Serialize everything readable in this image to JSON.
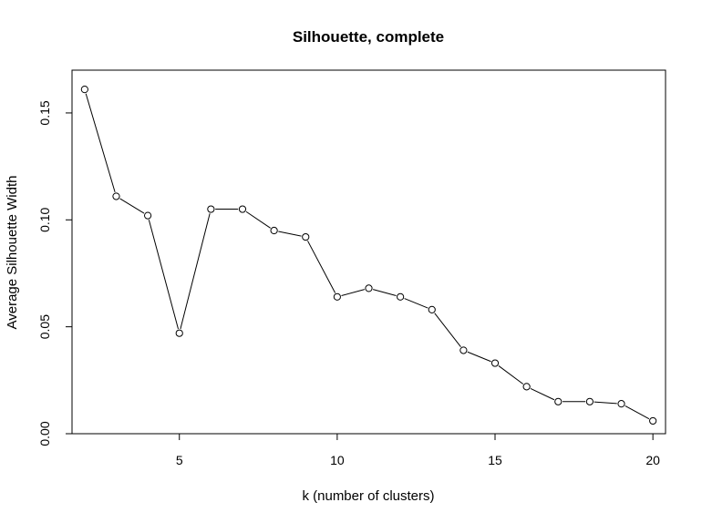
{
  "chart_data": {
    "type": "line",
    "title": "Silhouette, complete",
    "xlabel": "k (number of clusters)",
    "ylabel": "Average Silhouette Width",
    "xlim": [
      1.6,
      20.4
    ],
    "ylim": [
      0.0,
      0.17
    ],
    "x_ticks": [
      5,
      10,
      15,
      20
    ],
    "x_tick_labels": [
      "5",
      "10",
      "15",
      "20"
    ],
    "y_ticks": [
      0.0,
      0.05,
      0.1,
      0.15
    ],
    "y_tick_labels": [
      "0.00",
      "0.05",
      "0.10",
      "0.15"
    ],
    "grid": false,
    "series": [
      {
        "marker": "open-circle",
        "x": [
          2,
          3,
          4,
          5,
          6,
          7,
          8,
          9,
          10,
          11,
          12,
          13,
          14,
          15,
          16,
          17,
          18,
          19,
          20
        ],
        "y": [
          0.161,
          0.111,
          0.102,
          0.047,
          0.105,
          0.105,
          0.095,
          0.092,
          0.064,
          0.068,
          0.064,
          0.058,
          0.039,
          0.033,
          0.022,
          0.015,
          0.015,
          0.014,
          0.006
        ]
      }
    ]
  }
}
